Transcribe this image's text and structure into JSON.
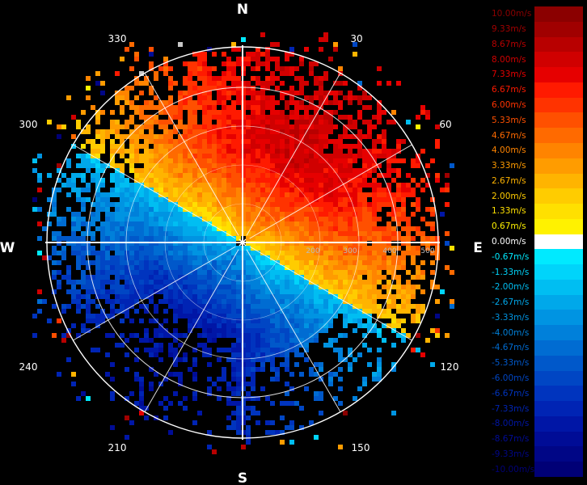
{
  "radar": {
    "cardinals": {
      "north": "N",
      "south": "S",
      "east": "E",
      "west": "W"
    },
    "bearing_labels": [
      "30",
      "60",
      "120",
      "150",
      "210",
      "240",
      "300",
      "330"
    ],
    "range_labels": [
      "200",
      "300",
      "400",
      "500"
    ],
    "colors": {
      "background": "#000000",
      "ring": "#ffffff",
      "axis": "#ffffff"
    }
  },
  "legend": {
    "entries": [
      {
        "label": "10.00m/s",
        "color": "#8b0000"
      },
      {
        "label": "9.33m/s",
        "color": "#a00000"
      },
      {
        "label": "8.67m/s",
        "color": "#b80000"
      },
      {
        "label": "8.00m/s",
        "color": "#d00000"
      },
      {
        "label": "7.33m/s",
        "color": "#e60000"
      },
      {
        "label": "6.67m/s",
        "color": "#ff1a00"
      },
      {
        "label": "6.00m/s",
        "color": "#ff3300"
      },
      {
        "label": "5.33m/s",
        "color": "#ff5000"
      },
      {
        "label": "4.67m/s",
        "color": "#ff6a00"
      },
      {
        "label": "4.00m/s",
        "color": "#ff8400"
      },
      {
        "label": "3.33m/s",
        "color": "#ff9c00"
      },
      {
        "label": "2.67m/s",
        "color": "#ffb400"
      },
      {
        "label": "2.00m/s",
        "color": "#ffcc00"
      },
      {
        "label": "1.33m/s",
        "color": "#ffe000"
      },
      {
        "label": "0.67m/s",
        "color": "#fff200"
      },
      {
        "label": "0.00m/s",
        "color": "#ffffff"
      },
      {
        "label": "-0.67m/s",
        "color": "#00eaff"
      },
      {
        "label": "-1.33m/s",
        "color": "#00d4fa"
      },
      {
        "label": "-2.00m/s",
        "color": "#00bef2"
      },
      {
        "label": "-2.67m/s",
        "color": "#00a8ea"
      },
      {
        "label": "-3.33m/s",
        "color": "#0094e2"
      },
      {
        "label": "-4.00m/s",
        "color": "#0080da"
      },
      {
        "label": "-4.67m/s",
        "color": "#006cd2"
      },
      {
        "label": "-5.33m/s",
        "color": "#0058ca"
      },
      {
        "label": "-6.00m/s",
        "color": "#0046c4"
      },
      {
        "label": "-6.67m/s",
        "color": "#0034be"
      },
      {
        "label": "-7.33m/s",
        "color": "#0024b4"
      },
      {
        "label": "-8.00m/s",
        "color": "#0016a6"
      },
      {
        "label": "-8.67m/s",
        "color": "#000c96"
      },
      {
        "label": "-9.33m/s",
        "color": "#000686"
      },
      {
        "label": "-10.00m/s",
        "color": "#000076"
      }
    ]
  }
}
